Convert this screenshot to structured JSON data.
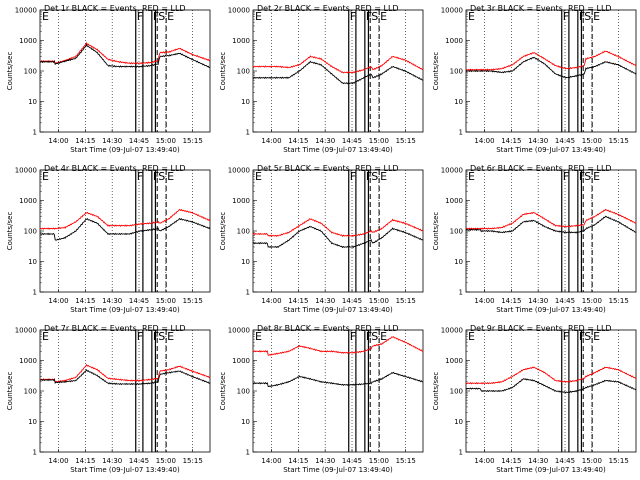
{
  "charts": [
    {
      "title": "Det 1r BLACK = Events, RED = LLD",
      "xlabel": "Start Time (09-Jul-07 13:49:40)",
      "ylabel": "Counts/sec"
    },
    {
      "title": "Det 2r BLACK = Events, RED = LLD",
      "xlabel": "Start Time (09-Jul-07 13:49:40)",
      "ylabel": "Counts/sec"
    },
    {
      "title": "Det 3r BLACK = Events, RED = LLD",
      "xlabel": "Start Time (09-Jul-07 13:49:40)",
      "ylabel": "Counts/sec"
    },
    {
      "title": "Det 4r BLACK = Events, RED = LLD",
      "xlabel": "Start Time (09-Jul-07 13:49:40)",
      "ylabel": "Counts/sec"
    },
    {
      "title": "Det 5r BLACK = Events, RED = LLD",
      "xlabel": "Start Time (09-Jul-07 13:49:40)",
      "ylabel": "Counts/sec"
    },
    {
      "title": "Det 6r BLACK = Events, RED = LLD",
      "xlabel": "Start Time (09-Jul-07 13:49:40)",
      "ylabel": "Counts/sec"
    },
    {
      "title": "Det 7r BLACK = Events, RED = LLD",
      "xlabel": "Start Time (09-Jul-07 13:49:40)",
      "ylabel": "Counts/sec"
    },
    {
      "title": "Det 8r BLACK = Events, RED = LLD",
      "xlabel": "Start Time (09-Jul-07 13:49:40)",
      "ylabel": "Counts/sec"
    },
    {
      "title": "Det 9r BLACK = Events, RED = LLD",
      "xlabel": "Start Time (09-Jul-07 13:49:40)",
      "ylabel": "Counts/sec"
    }
  ],
  "chart_data": {
    "type": "line",
    "panels": 9,
    "x_ticks": [
      "14:00",
      "14:15",
      "14:30",
      "14:45",
      "15:00",
      "15:15"
    ],
    "y_ticks": [
      "1",
      "10",
      "100",
      "1000",
      "10000"
    ],
    "x_tick_minutes": [
      10.33,
      25.33,
      40.33,
      55.33,
      70.33,
      85.33
    ],
    "xlim_minutes": [
      0,
      95
    ],
    "ylim": [
      1,
      10000
    ],
    "y_scale": "log",
    "series": [
      {
        "name": "BLACK = Events",
        "color": "#000000"
      },
      {
        "name": "RED = LLD",
        "color": "#ff0000"
      }
    ],
    "time_points_minutes": [
      0,
      8,
      8.5,
      14,
      20,
      26,
      32,
      38,
      44,
      50,
      56,
      62,
      66,
      67,
      72,
      78,
      85,
      95
    ],
    "events": [
      [
        200,
        200,
        170,
        210,
        260,
        700,
        400,
        150,
        140,
        140,
        140,
        150,
        170,
        300,
        320,
        380,
        240,
        130
      ],
      [
        60,
        60,
        60,
        60,
        60,
        100,
        200,
        160,
        80,
        40,
        40,
        60,
        80,
        60,
        80,
        140,
        100,
        50
      ],
      [
        100,
        100,
        100,
        100,
        90,
        100,
        200,
        280,
        170,
        80,
        60,
        70,
        80,
        120,
        140,
        200,
        160,
        80
      ],
      [
        80,
        80,
        50,
        60,
        100,
        250,
        180,
        80,
        80,
        80,
        100,
        110,
        120,
        100,
        140,
        250,
        200,
        120
      ],
      [
        40,
        40,
        30,
        30,
        50,
        100,
        140,
        100,
        40,
        30,
        30,
        40,
        50,
        40,
        60,
        120,
        90,
        50
      ],
      [
        110,
        110,
        100,
        100,
        90,
        100,
        200,
        220,
        140,
        100,
        90,
        90,
        100,
        120,
        160,
        300,
        200,
        90
      ],
      [
        230,
        230,
        190,
        200,
        220,
        480,
        320,
        180,
        170,
        170,
        170,
        180,
        200,
        350,
        400,
        450,
        300,
        180
      ],
      [
        180,
        180,
        140,
        160,
        200,
        300,
        250,
        200,
        180,
        160,
        160,
        170,
        180,
        200,
        250,
        400,
        300,
        200
      ],
      [
        120,
        120,
        100,
        100,
        100,
        130,
        250,
        220,
        150,
        100,
        90,
        100,
        120,
        130,
        160,
        220,
        200,
        110
      ]
    ],
    "lld": [
      [
        210,
        210,
        180,
        220,
        300,
        800,
        500,
        240,
        200,
        180,
        180,
        190,
        220,
        400,
        420,
        550,
        350,
        220
      ],
      [
        140,
        140,
        140,
        140,
        130,
        160,
        300,
        250,
        140,
        90,
        90,
        110,
        140,
        110,
        150,
        300,
        230,
        110
      ],
      [
        110,
        110,
        110,
        110,
        120,
        160,
        300,
        400,
        250,
        150,
        120,
        130,
        150,
        250,
        300,
        450,
        300,
        150
      ],
      [
        120,
        120,
        120,
        130,
        200,
        400,
        300,
        150,
        150,
        150,
        170,
        180,
        200,
        180,
        250,
        500,
        400,
        220
      ],
      [
        80,
        80,
        70,
        70,
        90,
        150,
        250,
        180,
        90,
        70,
        70,
        80,
        100,
        90,
        120,
        230,
        180,
        100
      ],
      [
        120,
        120,
        120,
        120,
        130,
        180,
        350,
        400,
        250,
        150,
        140,
        150,
        160,
        220,
        300,
        500,
        350,
        180
      ],
      [
        240,
        240,
        200,
        220,
        280,
        700,
        500,
        260,
        240,
        220,
        220,
        240,
        260,
        450,
        500,
        650,
        450,
        280
      ],
      [
        2000,
        2000,
        1500,
        1700,
        2000,
        3000,
        2500,
        2000,
        2000,
        1800,
        1800,
        2000,
        2500,
        3000,
        3500,
        6000,
        4000,
        2000
      ],
      [
        180,
        180,
        180,
        180,
        200,
        300,
        500,
        600,
        400,
        220,
        200,
        220,
        260,
        300,
        400,
        600,
        500,
        260
      ]
    ],
    "markers": {
      "F": [
        53.5,
        62.5
      ],
      "S": [
        65.5
      ],
      "E": [
        70.5
      ],
      "solid_lines": [
        [
          53.5,
          57.5
        ],
        [
          62.5,
          64.5
        ]
      ],
      "dashed_lines": [
        [
          65.5
        ],
        [
          70.5
        ]
      ]
    },
    "grid": "vertical dotted",
    "legend": "title"
  }
}
